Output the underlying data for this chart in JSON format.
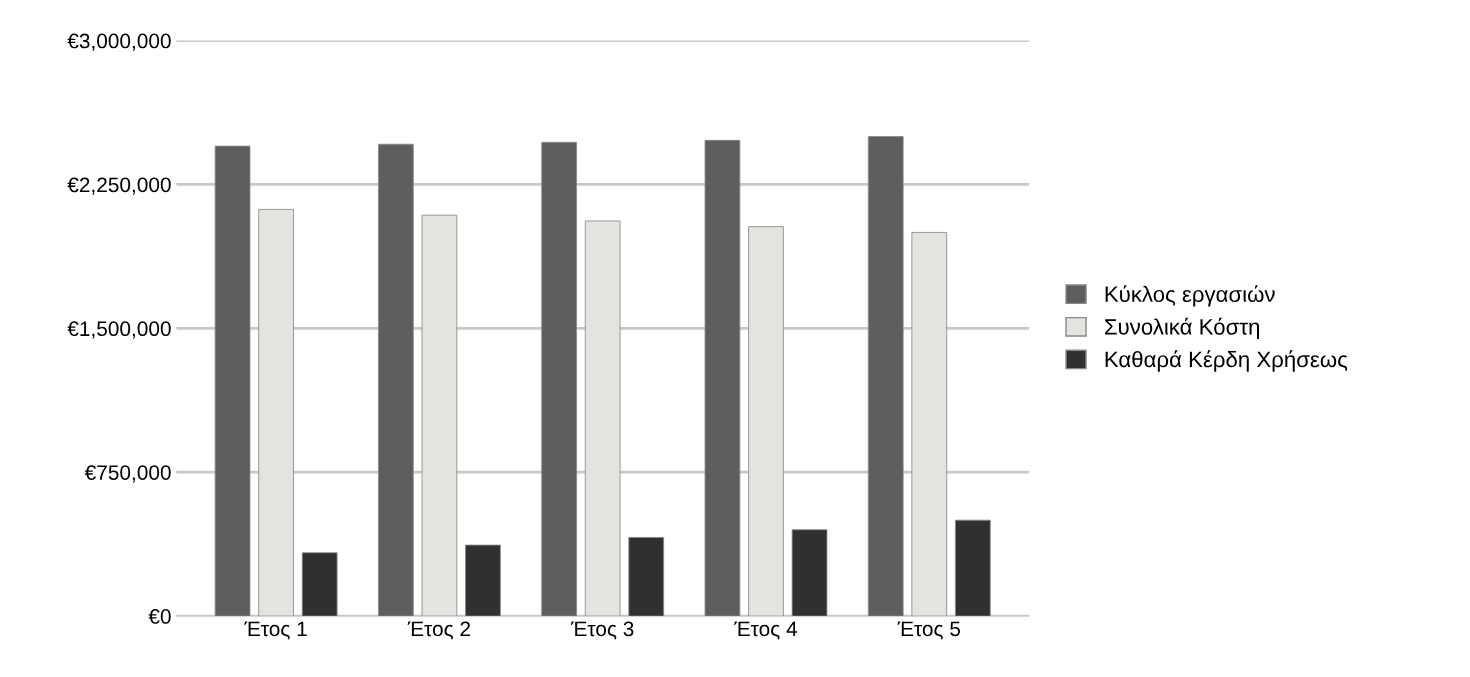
{
  "chart_data": {
    "type": "bar",
    "categories": [
      "Έτος 1",
      "Έτος 2",
      "Έτος 3",
      "Έτος 4",
      "Έτος 5"
    ],
    "series": [
      {
        "name": "Κύκλος εργασιών",
        "color": "#5d5f5d",
        "values": [
          2450000,
          2460000,
          2470000,
          2480000,
          2500000
        ]
      },
      {
        "name": "Συνολικά Κόστη",
        "color": "#e4e3df",
        "values": [
          2120000,
          2090000,
          2060000,
          2030000,
          2000000
        ]
      },
      {
        "name": "Καθαρά Κέρδη Χρήσεως",
        "color": "#2f3130",
        "values": [
          330000,
          370000,
          410000,
          450000,
          500000
        ]
      }
    ],
    "ylim": [
      0,
      3000000
    ],
    "yticks": [
      {
        "value": 0,
        "label": "€0"
      },
      {
        "value": 750000,
        "label": "€750,000"
      },
      {
        "value": 1500000,
        "label": "€1,500,000"
      },
      {
        "value": 2250000,
        "label": "€2,250,000"
      },
      {
        "value": 3000000,
        "label": "€3,000,000"
      }
    ],
    "grid": "y",
    "legend": "right"
  }
}
